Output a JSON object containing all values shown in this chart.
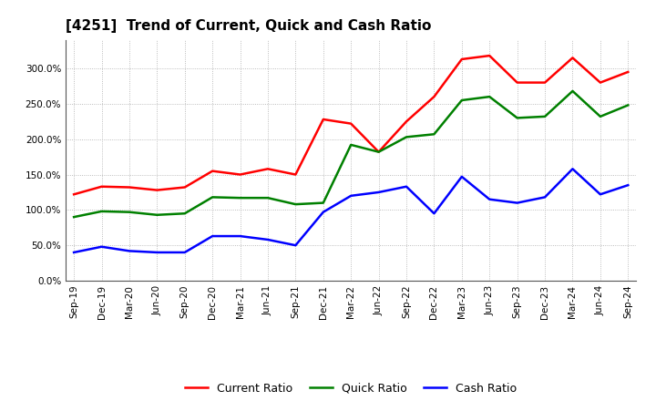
{
  "title": "[4251]  Trend of Current, Quick and Cash Ratio",
  "x_labels": [
    "Sep-19",
    "Dec-19",
    "Mar-20",
    "Jun-20",
    "Sep-20",
    "Dec-20",
    "Mar-21",
    "Jun-21",
    "Sep-21",
    "Dec-21",
    "Mar-22",
    "Jun-22",
    "Sep-22",
    "Dec-22",
    "Mar-23",
    "Jun-23",
    "Sep-23",
    "Dec-23",
    "Mar-24",
    "Jun-24",
    "Sep-24"
  ],
  "current_ratio": [
    122,
    133,
    132,
    128,
    132,
    155,
    150,
    158,
    150,
    228,
    222,
    182,
    225,
    260,
    313,
    318,
    280,
    280,
    315,
    280,
    295
  ],
  "quick_ratio": [
    90,
    98,
    97,
    93,
    95,
    118,
    117,
    117,
    108,
    110,
    192,
    182,
    203,
    207,
    255,
    260,
    230,
    232,
    268,
    232,
    248
  ],
  "cash_ratio": [
    40,
    48,
    42,
    40,
    40,
    63,
    63,
    58,
    50,
    97,
    120,
    125,
    133,
    95,
    147,
    115,
    110,
    118,
    158,
    122,
    135
  ],
  "current_color": "#ff0000",
  "quick_color": "#008000",
  "cash_color": "#0000ff",
  "ylim": [
    0,
    340
  ],
  "yticks": [
    0,
    50,
    100,
    150,
    200,
    250,
    300
  ],
  "grid_color": "#aaaaaa",
  "bg_color": "#ffffff",
  "plot_bg_color": "#ffffff",
  "line_width": 1.8,
  "legend_labels": [
    "Current Ratio",
    "Quick Ratio",
    "Cash Ratio"
  ],
  "title_fontsize": 11,
  "tick_fontsize": 7.5,
  "legend_fontsize": 9
}
